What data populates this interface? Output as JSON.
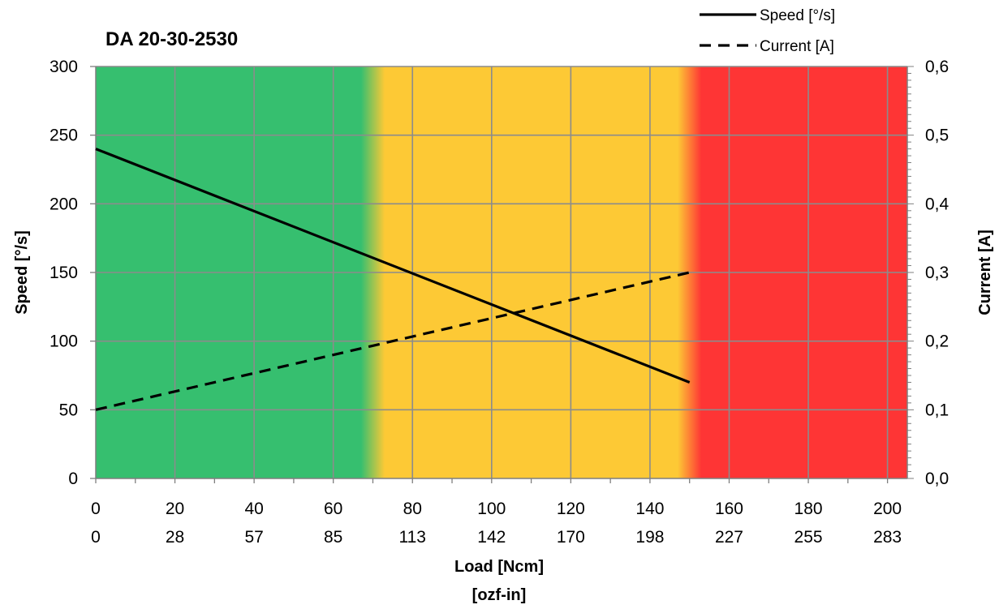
{
  "chart_data": {
    "type": "line",
    "title": "DA 20-30-2530",
    "xlabel": "Load [Ncm]",
    "xlabel_secondary": "[ozf-in]",
    "ylabel": "Speed  [°/s]",
    "y2label": "Current  [A]",
    "xlim": [
      0,
      205
    ],
    "ylim": [
      0,
      300
    ],
    "y2lim": [
      0,
      0.6
    ],
    "x_ticks": [
      0,
      20,
      40,
      60,
      80,
      100,
      120,
      140,
      160,
      180,
      200
    ],
    "x_tick_labels": [
      "0",
      "20",
      "40",
      "60",
      "80",
      "100",
      "120",
      "140",
      "160",
      "180",
      "200"
    ],
    "x_secondary_tick_labels": [
      "0",
      "28",
      "57",
      "85",
      "113",
      "142",
      "170",
      "198",
      "227",
      "255",
      "283"
    ],
    "y_ticks": [
      0,
      50,
      100,
      150,
      200,
      250,
      300
    ],
    "y_tick_labels": [
      "0",
      "50",
      "100",
      "150",
      "200",
      "250",
      "300"
    ],
    "y2_ticks": [
      0,
      0.1,
      0.2,
      0.3,
      0.4,
      0.5,
      0.6
    ],
    "y2_tick_labels": [
      "0,0",
      "0,1",
      "0,2",
      "0,3",
      "0,4",
      "0,5",
      "0,6"
    ],
    "grid": true,
    "legend_position": "top-right",
    "zones": [
      {
        "from": 0,
        "to": 70,
        "color": "#36bf6f"
      },
      {
        "from": 70,
        "to": 150,
        "color": "#fdc935"
      },
      {
        "from": 150,
        "to": 205,
        "color": "#fe3535"
      }
    ],
    "series": [
      {
        "name": "Speed [°/s]",
        "axis": "left",
        "style": "solid",
        "color": "#000000",
        "x": [
          0,
          150
        ],
        "y": [
          240,
          70
        ]
      },
      {
        "name": "Current [A]",
        "axis": "right",
        "style": "dashed",
        "color": "#000000",
        "x": [
          0,
          150
        ],
        "y": [
          0.1,
          0.3
        ]
      }
    ]
  }
}
